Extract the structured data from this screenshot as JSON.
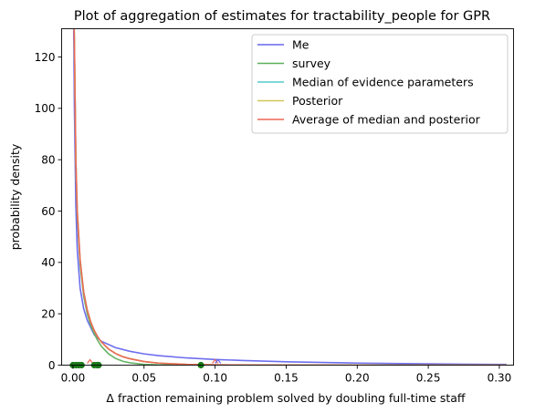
{
  "chart_data": {
    "type": "line",
    "title": "Plot of aggregation of estimates for tractability_people for GPR",
    "xlabel": "Δ fraction remaining problem solved by doubling full-time staff",
    "ylabel": "probability density",
    "xlim": [
      -0.008,
      0.31
    ],
    "ylim": [
      0,
      131
    ],
    "xticks": [
      0.0,
      0.05,
      0.1,
      0.15,
      0.2,
      0.25,
      0.3
    ],
    "xtick_labels": [
      "0.00",
      "0.05",
      "0.10",
      "0.15",
      "0.20",
      "0.25",
      "0.30"
    ],
    "yticks": [
      0,
      20,
      40,
      60,
      80,
      100,
      120
    ],
    "ytick_labels": [
      "0",
      "20",
      "40",
      "60",
      "80",
      "100",
      "120"
    ],
    "grid": false,
    "legend_position": "top-right",
    "series": [
      {
        "name": "Me",
        "color": "#6666ee",
        "x": [
          0.0005,
          0.001,
          0.002,
          0.003,
          0.005,
          0.0075,
          0.01,
          0.015,
          0.02,
          0.03,
          0.04,
          0.05,
          0.06,
          0.08,
          0.1,
          0.12,
          0.15,
          0.18,
          0.2,
          0.25,
          0.3,
          0.305
        ],
        "y": [
          131,
          100,
          62,
          45,
          30,
          22,
          17.5,
          11.8,
          9.3,
          6.8,
          5.4,
          4.4,
          3.7,
          2.8,
          2.2,
          1.8,
          1.3,
          1.0,
          0.8,
          0.5,
          0.3,
          0.3
        ]
      },
      {
        "name": "survey",
        "color": "#5caf5c",
        "x": [
          0.0008,
          0.001,
          0.002,
          0.003,
          0.005,
          0.0075,
          0.01,
          0.0125,
          0.015,
          0.0175,
          0.02,
          0.025,
          0.03,
          0.035,
          0.04,
          0.05,
          0.06,
          0.08,
          0.1,
          0.15,
          0.2,
          0.3,
          0.305
        ],
        "y": [
          131,
          125,
          78,
          58,
          39,
          27,
          20,
          15.5,
          12.2,
          9.5,
          7.3,
          4.4,
          2.6,
          1.5,
          0.9,
          0.3,
          0.1,
          0.02,
          0.0,
          0.0,
          0.0,
          0.0,
          0.0
        ]
      },
      {
        "name": "Median of evidence parameters",
        "color": "#55cccc",
        "x": [
          0.0008,
          0.001,
          0.002,
          0.003,
          0.005,
          0.0075,
          0.01,
          0.0125,
          0.015,
          0.0175,
          0.02,
          0.025,
          0.03,
          0.035,
          0.04,
          0.05,
          0.06,
          0.08,
          0.1,
          0.15,
          0.2,
          0.3,
          0.305
        ],
        "y": [
          131,
          125,
          80,
          60,
          41,
          28.5,
          21.5,
          16.8,
          13.4,
          10.9,
          9.0,
          6.3,
          4.5,
          3.3,
          2.5,
          1.4,
          0.8,
          0.3,
          0.1,
          0.02,
          0.0,
          0.0,
          0.0
        ]
      },
      {
        "name": "Posterior",
        "color": "#d4c75a",
        "x": [
          0.0008,
          0.001,
          0.002,
          0.003,
          0.005,
          0.0075,
          0.01,
          0.0125,
          0.015,
          0.0175,
          0.02,
          0.025,
          0.03,
          0.035,
          0.04,
          0.05,
          0.06,
          0.08,
          0.1,
          0.15,
          0.2,
          0.3,
          0.305
        ],
        "y": [
          131,
          125,
          80,
          60,
          41,
          28.5,
          21.5,
          16.8,
          13.4,
          10.9,
          9.0,
          6.3,
          4.5,
          3.3,
          2.5,
          1.4,
          0.8,
          0.3,
          0.1,
          0.02,
          0.0,
          0.0,
          0.0
        ]
      },
      {
        "name": "Average of median and posterior",
        "color": "#ee6655",
        "x": [
          0.0008,
          0.001,
          0.002,
          0.003,
          0.005,
          0.0075,
          0.01,
          0.0125,
          0.015,
          0.0175,
          0.02,
          0.025,
          0.03,
          0.035,
          0.04,
          0.05,
          0.06,
          0.08,
          0.1,
          0.15,
          0.2,
          0.3,
          0.305
        ],
        "y": [
          131,
          125,
          80,
          60,
          41,
          28.5,
          21.5,
          16.8,
          13.4,
          10.9,
          9.0,
          6.3,
          4.5,
          3.3,
          2.5,
          1.4,
          0.8,
          0.3,
          0.1,
          0.02,
          0.0,
          0.0,
          0.0
        ]
      }
    ],
    "point_markers": {
      "green_points_x": [
        0.0,
        0.002,
        0.004,
        0.006,
        0.015,
        0.017,
        0.018,
        0.09
      ],
      "green_color": "#1a7a1a",
      "red_points_x": [
        0.012,
        0.1
      ],
      "red_color": "#ee6655",
      "blue_points_x": [
        0.102
      ],
      "blue_color": "#6666ee"
    }
  }
}
